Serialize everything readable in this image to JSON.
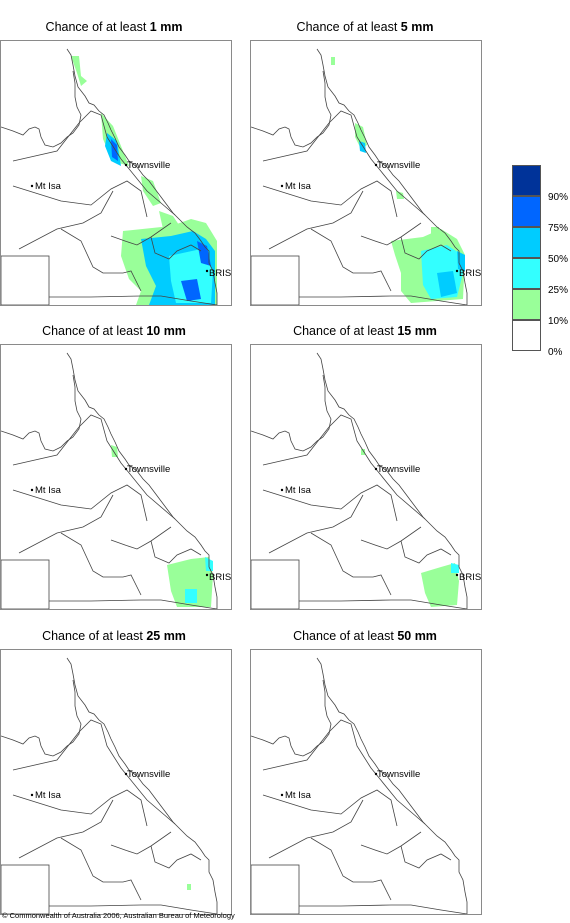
{
  "panels": [
    {
      "prefix": "Chance of at least ",
      "amount": "1 mm"
    },
    {
      "prefix": "Chance of at least ",
      "amount": "5 mm"
    },
    {
      "prefix": "Chance of at least ",
      "amount": "10 mm"
    },
    {
      "prefix": "Chance of at least ",
      "amount": "15 mm"
    },
    {
      "prefix": "Chance of at least ",
      "amount": "25 mm"
    },
    {
      "prefix": "Chance of at least ",
      "amount": "50 mm"
    }
  ],
  "places": {
    "townsville": "Townsville",
    "mt_isa": "Mt Isa",
    "brisbane": "BRIS"
  },
  "legend": [
    {
      "label": "90%",
      "color": "#003399"
    },
    {
      "label": "75%",
      "color": "#0066ff"
    },
    {
      "label": "50%",
      "color": "#00ccff"
    },
    {
      "label": "25%",
      "color": "#33ffff"
    },
    {
      "label": "10%",
      "color": "#99ff99"
    },
    {
      "label": "0%",
      "color": "#ffffff"
    }
  ],
  "copyright": "© Commonwealth of Australia 2006, Australian Bureau of Meteorology"
}
